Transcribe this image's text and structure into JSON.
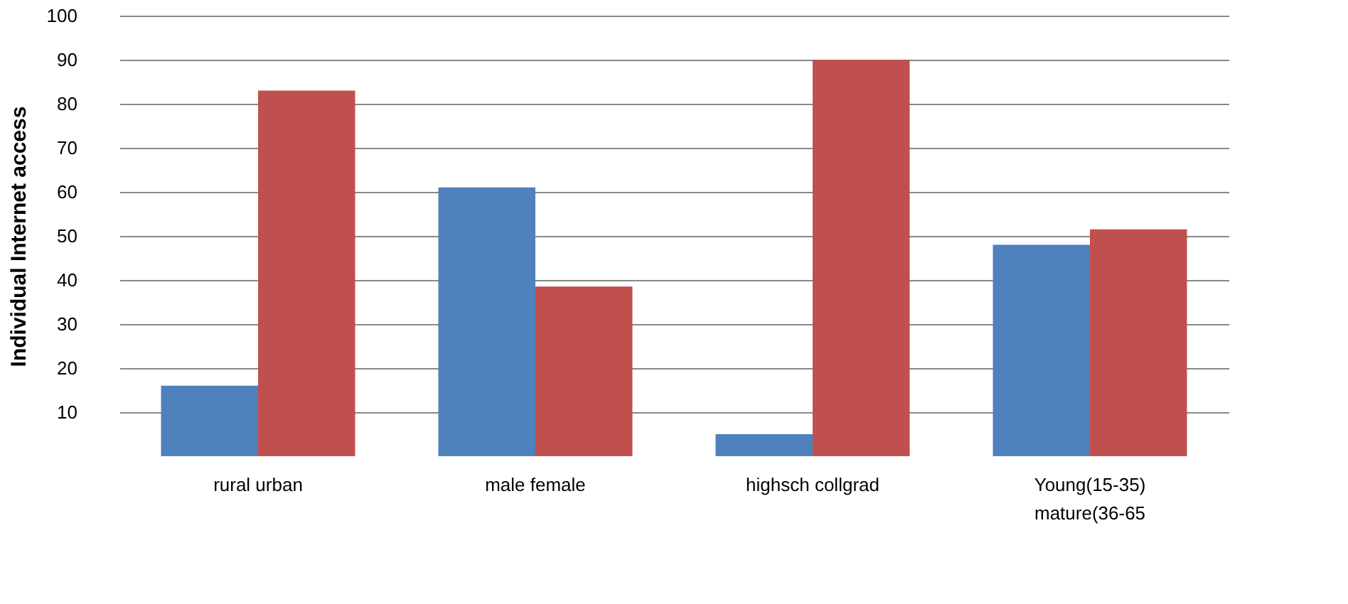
{
  "chart_data": {
    "type": "bar",
    "ylabel": "Individual Internet access",
    "categories": [
      "rural urban",
      "male female",
      "highsch collgrad",
      "Young(15-35)\nmature(36-65"
    ],
    "series": [
      {
        "color": "#4f81bd",
        "values": [
          16,
          61,
          5,
          48
        ]
      },
      {
        "color": "#c0504d",
        "values": [
          83,
          38.5,
          90,
          51.5
        ]
      }
    ],
    "ylim": [
      0,
      100
    ],
    "yticks": [
      10,
      20,
      30,
      40,
      50,
      60,
      70,
      80,
      90,
      100
    ],
    "grid": "y"
  }
}
